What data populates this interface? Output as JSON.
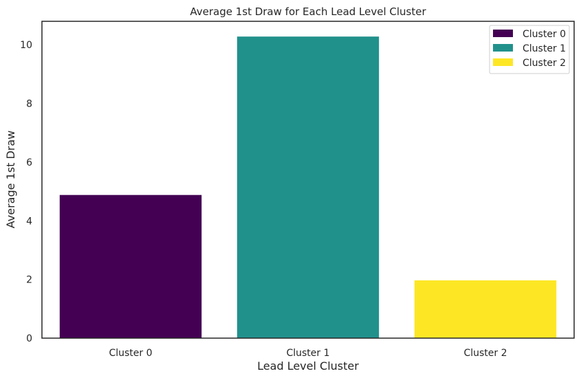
{
  "chart_data": {
    "type": "bar",
    "title": "Average 1st Draw for Each Lead Level Cluster",
    "xlabel": "Lead Level Cluster",
    "ylabel": "Average 1st Draw",
    "categories": [
      "Cluster 0",
      "Cluster 1",
      "Cluster 2"
    ],
    "values": [
      4.88,
      10.28,
      1.97
    ],
    "colors": [
      "#440154",
      "#21918c",
      "#fde725"
    ],
    "ylim": [
      0,
      10.8
    ],
    "yticks": [
      0,
      2,
      4,
      6,
      8,
      10
    ],
    "grid": false,
    "legend": {
      "position": "top-right",
      "entries": [
        "Cluster 0",
        "Cluster 1",
        "Cluster 2"
      ]
    }
  }
}
